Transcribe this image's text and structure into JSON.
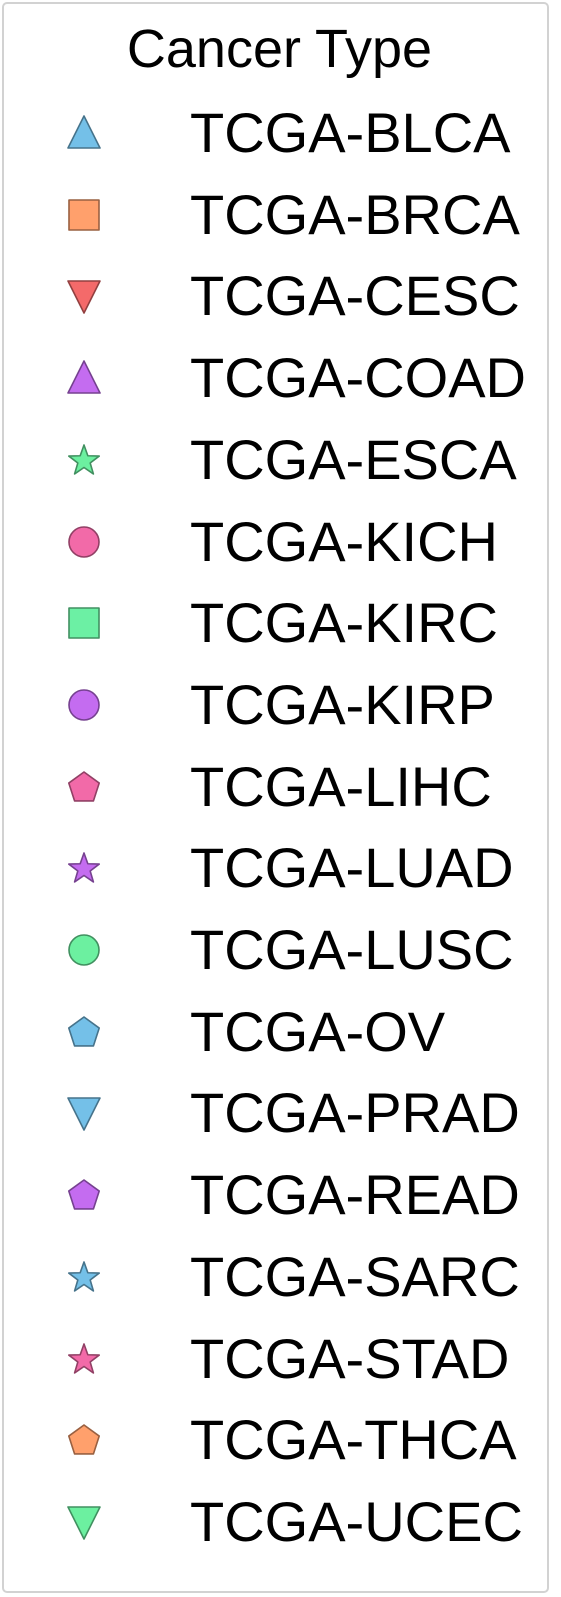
{
  "chart_data": {
    "type": "legend",
    "title": "Cancer Type",
    "entries": [
      {
        "label": "TCGA-BLCA",
        "shape": "triangle-up",
        "color": "#74c0e8"
      },
      {
        "label": "TCGA-BRCA",
        "shape": "square",
        "color": "#ffa06c"
      },
      {
        "label": "TCGA-CESC",
        "shape": "triangle-down",
        "color": "#f46a6a"
      },
      {
        "label": "TCGA-COAD",
        "shape": "triangle-up",
        "color": "#c46cf0"
      },
      {
        "label": "TCGA-ESCA",
        "shape": "star",
        "color": "#6cf0a0"
      },
      {
        "label": "TCGA-KICH",
        "shape": "circle",
        "color": "#f26aa8"
      },
      {
        "label": "TCGA-KIRC",
        "shape": "square",
        "color": "#6cf0a4"
      },
      {
        "label": "TCGA-KIRP",
        "shape": "circle",
        "color": "#c46cf0"
      },
      {
        "label": "TCGA-LIHC",
        "shape": "pentagon",
        "color": "#f26aa8"
      },
      {
        "label": "TCGA-LUAD",
        "shape": "star",
        "color": "#c46cf0"
      },
      {
        "label": "TCGA-LUSC",
        "shape": "circle",
        "color": "#6cf0a0"
      },
      {
        "label": "TCGA-OV",
        "shape": "pentagon",
        "color": "#74c0e8"
      },
      {
        "label": "TCGA-PRAD",
        "shape": "triangle-down",
        "color": "#74c0e8"
      },
      {
        "label": "TCGA-READ",
        "shape": "pentagon",
        "color": "#c46cf0"
      },
      {
        "label": "TCGA-SARC",
        "shape": "star",
        "color": "#74c0e8"
      },
      {
        "label": "TCGA-STAD",
        "shape": "star",
        "color": "#f26aa8"
      },
      {
        "label": "TCGA-THCA",
        "shape": "pentagon",
        "color": "#ffa06c"
      },
      {
        "label": "TCGA-UCEC",
        "shape": "triangle-down",
        "color": "#6cf0a0"
      }
    ]
  }
}
